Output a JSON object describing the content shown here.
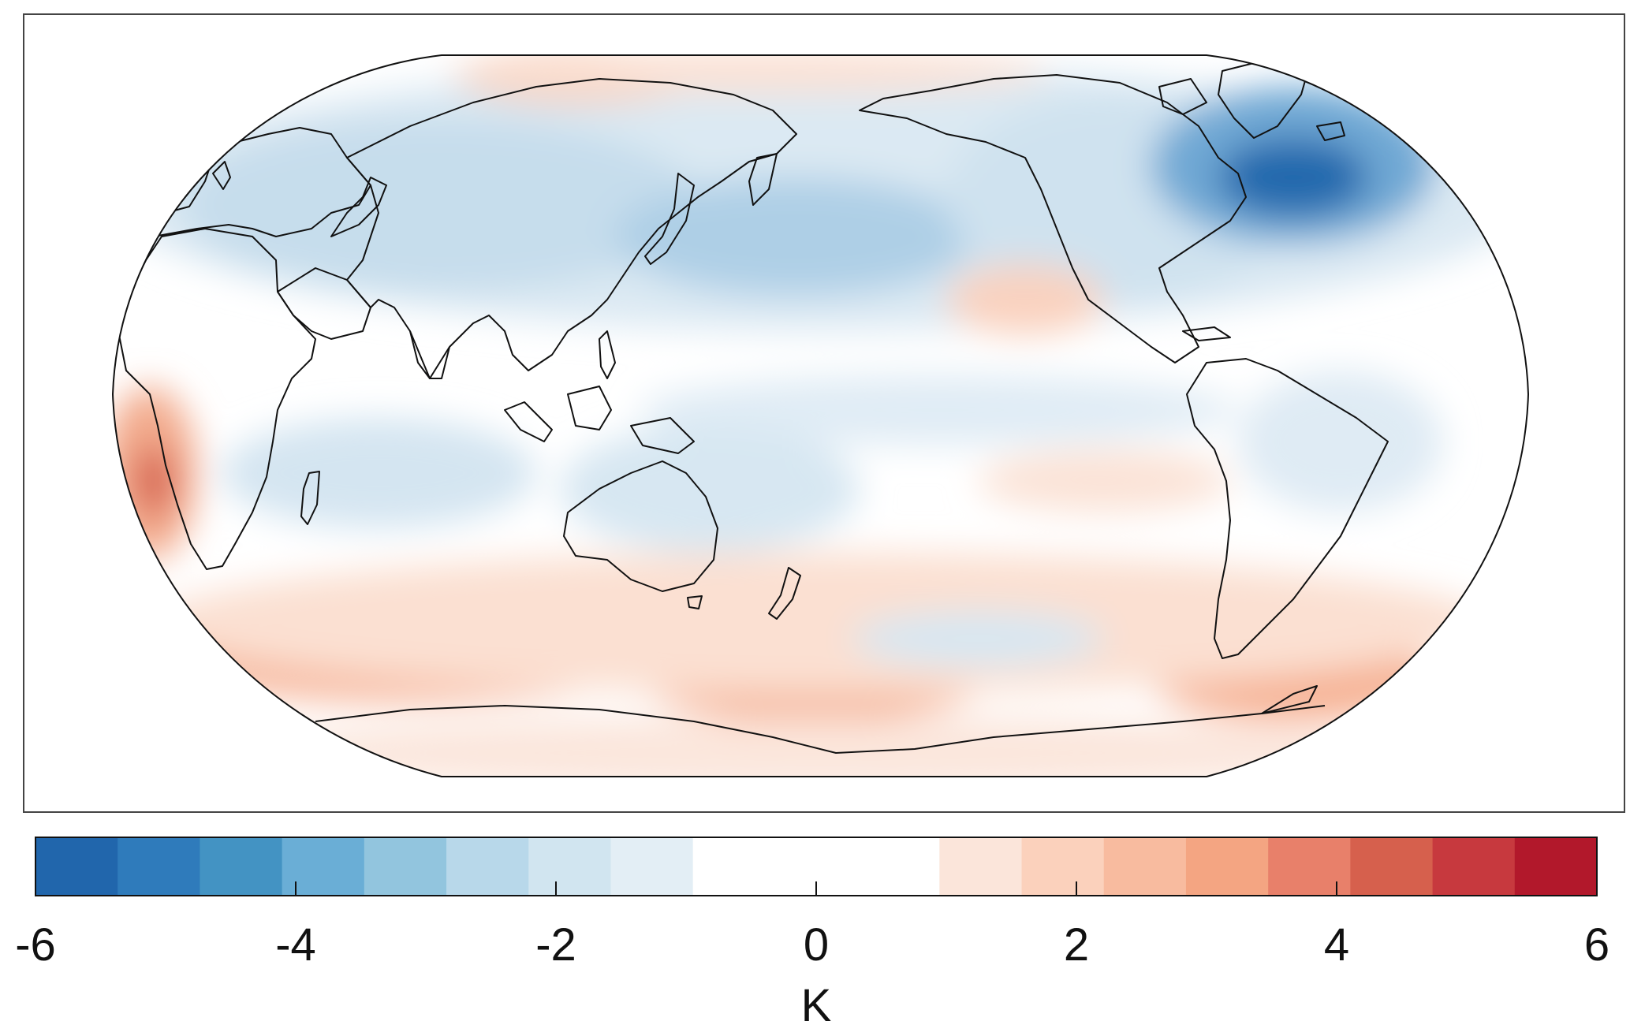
{
  "map": {
    "projection": "robinson-like",
    "central_meridian": 150,
    "background": "#ffffff",
    "frame_color": "#444444",
    "coastline_color": "#111111",
    "land_fill": "none",
    "anomaly_regions": [
      {
        "name": "north-atlantic-labrador-cold",
        "anomaly": -5.2
      },
      {
        "name": "north-pacific-cold",
        "anomaly": -2.3
      },
      {
        "name": "eurasia-cold",
        "anomaly": -1.8
      },
      {
        "name": "north-america-cold",
        "anomaly": -1.5
      },
      {
        "name": "indian-ocean-cold",
        "anomaly": -1.2
      },
      {
        "name": "tropical-pacific-cold",
        "anomaly": -1.0
      },
      {
        "name": "southeast-atlantic-warm",
        "anomaly": 3.2
      },
      {
        "name": "southern-ocean-warm",
        "anomaly": 2.4
      },
      {
        "name": "east-pacific-warm",
        "anomaly": 1.4
      },
      {
        "name": "arctic-warm",
        "anomaly": 1.6
      },
      {
        "name": "antarctica-warm",
        "anomaly": 1.0
      }
    ]
  },
  "colorbar": {
    "label": "K",
    "min": -6,
    "max": 6,
    "ticks": [
      -6,
      -4,
      -2,
      0,
      2,
      4,
      6
    ],
    "tick_labels": [
      "-6",
      "-4",
      "-2",
      "0",
      "2",
      "4",
      "6"
    ],
    "colors": [
      "#2166ac",
      "#2f7bbb",
      "#4393c3",
      "#6aaed6",
      "#92c5de",
      "#b8d8ea",
      "#d1e5f0",
      "#e3eef5",
      "#ffffff",
      "#ffffff",
      "#ffffff",
      "#fbe5da",
      "#fbd1bc",
      "#f8bb9f",
      "#f4a582",
      "#e8806a",
      "#d6604d",
      "#c7393e",
      "#b2182b"
    ]
  }
}
